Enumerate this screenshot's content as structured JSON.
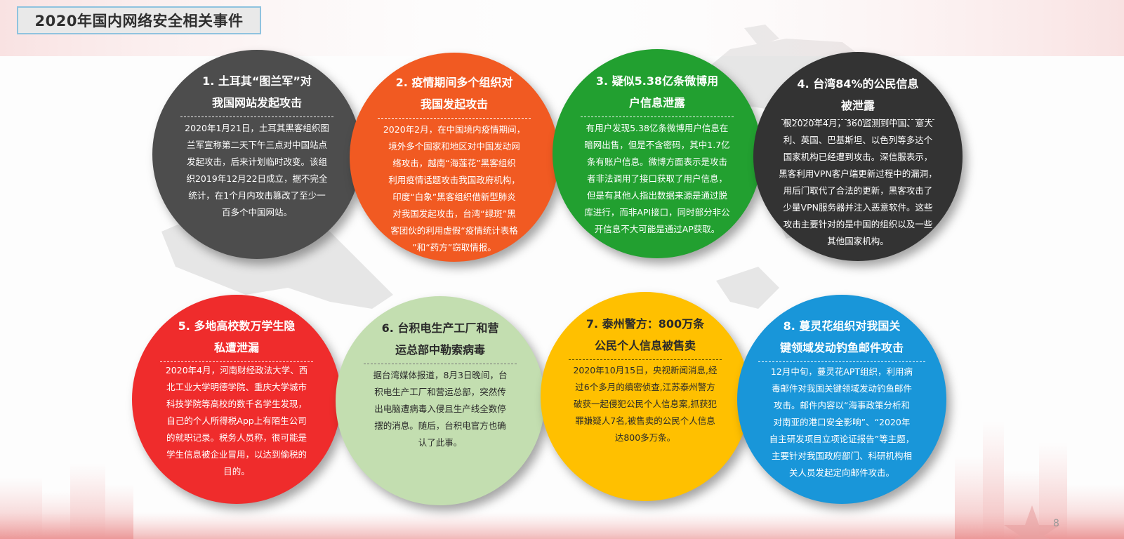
{
  "title": "2020年国内网络安全相关事件",
  "page_number": "8",
  "colors": {
    "title_border": "#8fc3df",
    "c1": "#4d4d4d",
    "c2": "#f15a22",
    "c3": "#22a030",
    "c4": "#333333",
    "c5": "#ef2c2c",
    "c6": "#c3deb0",
    "c7": "#ffc000",
    "c8": "#1996d9"
  },
  "events": [
    {
      "heading": [
        "1. 土耳其“图兰军”对",
        "我国网站发起攻击"
      ],
      "body": [
        "2020年1月21日，土耳其黑客组织图",
        "兰军宣称第二天下午三点对中国站点",
        "发起攻击，后来计划临时改变。该组",
        "织2019年12月22日成立，据不完全",
        "统计，在1个月内攻击篡改了至少一",
        "百多个中国网站。"
      ]
    },
    {
      "heading": [
        "2. 疫情期间多个组织对",
        "我国发起攻击"
      ],
      "body": [
        "2020年2月，在中国境内疫情期间，",
        "境外多个国家和地区对中国发动网",
        "络攻击，越南“海莲花”黑客组织",
        "利用疫情话题攻击我国政府机构，",
        "印度“白象”黑客组织借新型肺炎",
        "对我国发起攻击，台湾“绿斑”黑",
        "客团伙的利用虚假“疫情统计表格",
        "”和“药方”窃取情报。"
      ]
    },
    {
      "heading": [
        "3. 疑似5.38亿条微博用",
        "户信息泄露"
      ],
      "body": [
        "有用户发现5.38亿条微博用户信息在",
        "暗网出售，但是不含密码，其中1.7亿",
        "条有账户信息。微博方面表示是攻击",
        "者非法调用了接口获取了用户信息，",
        "但是有其他人指出数据来源是通过脱",
        "库进行，而非API接口，同时部分非公",
        "开信息不大可能是通过AP获取。"
      ]
    },
    {
      "heading": [
        "4. 台湾84%的公民信息",
        "被泄露"
      ],
      "body": [
        "根2020年4月，360监测到中国、意大",
        "利、英国、巴基斯坦、以色列等多达个",
        "国家机构已经遭到攻击。深信服表示，",
        "黑客利用VPN客户端更新过程中的漏洞，",
        "用后门取代了合法的更新，黑客攻击了",
        "少量VPN服务器并注入恶意软件。这些",
        "攻击主要针对的是中国的组织以及一些",
        "其他国家机构。"
      ]
    },
    {
      "heading": [
        "5. 多地高校数万学生隐",
        "私遭泄漏"
      ],
      "body": [
        "2020年4月，河南财经政法大学、西",
        "北工业大学明德学院、重庆大学城市",
        "科技学院等高校的数千名学生发现，",
        "自己的个人所得税App上有陌生公司",
        "的就职记录。税务人员称，很可能是",
        "学生信息被企业冒用，以达到偷税的",
        "目的。"
      ]
    },
    {
      "heading": [
        "6. 台积电生产工厂和营",
        "运总部中勒索病毒"
      ],
      "body": [
        "据台湾媒体报道，8月3日晚间，台",
        "积电生产工厂和营运总部，突然传",
        "出电脑遭病毒入侵且生产线全数停",
        "摆的消息。随后，台积电官方也确",
        "认了此事。"
      ]
    },
    {
      "heading": [
        "7. 泰州警方：800万条",
        "公民个人信息被售卖"
      ],
      "body": [
        "2020年10月15日，央视新闻消息,经",
        "过6个多月的缜密侦查,江苏泰州警方",
        "破获一起侵犯公民个人信息案,抓获犯",
        "罪嫌疑人7名,被售卖的公民个人信息",
        "达800多万条。"
      ]
    },
    {
      "heading": [
        "8. 蔓灵花组织对我国关",
        "键领域发动钓鱼邮件攻击"
      ],
      "body": [
        "12月中旬，蔓灵花APT组织，利用病",
        "毒邮件对我国关键领域发动钓鱼邮件",
        "攻击。邮件内容以“海事政策分析和",
        "对南亚的港口安全影响”、“2020年",
        "自主研发项目立项论证报告”等主题，",
        "主要针对我国政府部门、科研机构相",
        "关人员发起定向邮件攻击。"
      ]
    }
  ]
}
